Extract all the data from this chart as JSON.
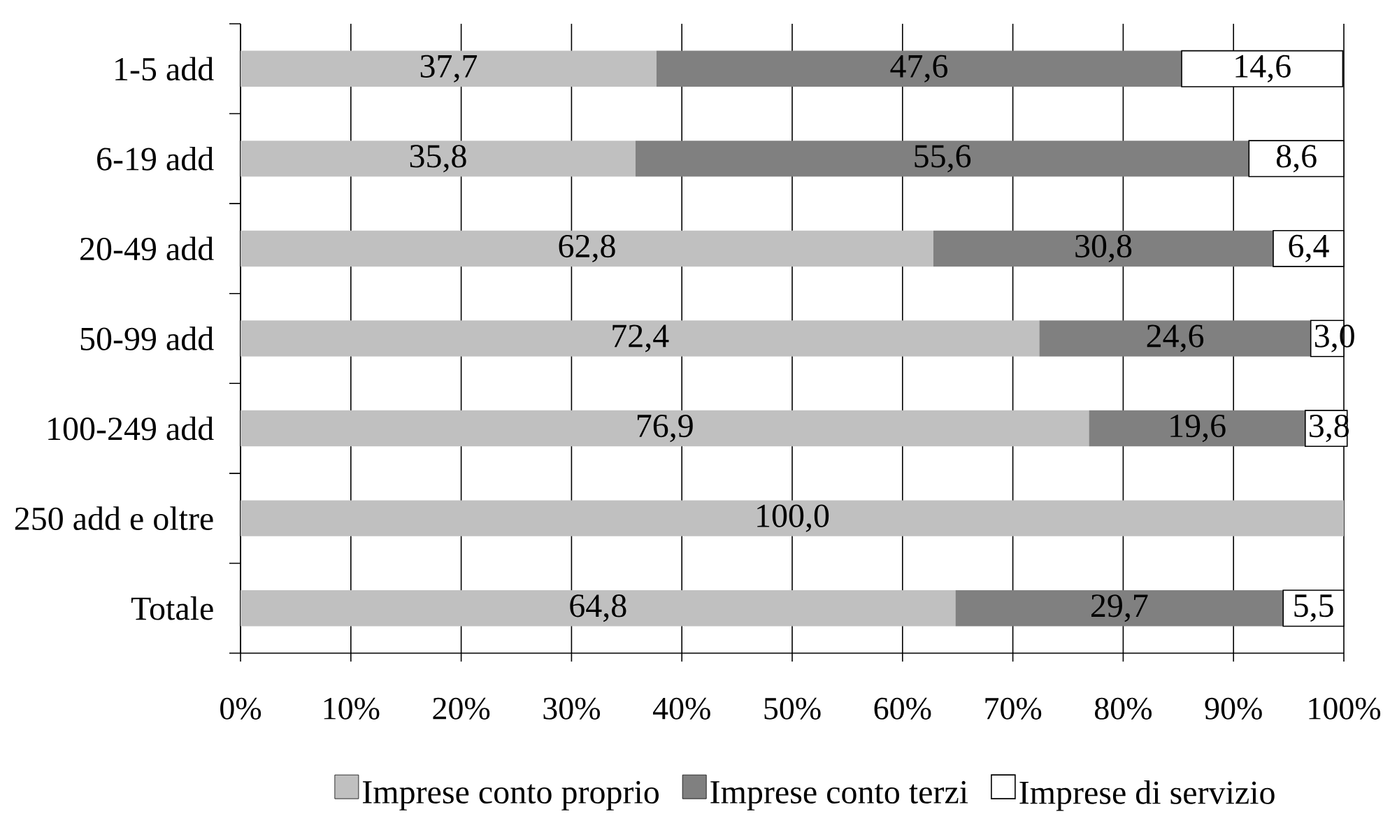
{
  "chart_data": {
    "type": "bar",
    "orientation": "horizontal",
    "stacked": true,
    "categories": [
      "1-5 add",
      "6-19 add",
      "20-49 add",
      "50-99 add",
      "100-249 add",
      "250 add e oltre",
      "Totale"
    ],
    "series": [
      {
        "name": "Imprese conto proprio",
        "color": "#c0c0c0",
        "values": [
          37.7,
          35.8,
          62.8,
          72.4,
          76.9,
          100.0,
          64.8
        ],
        "value_labels": [
          "37,7",
          "35,8",
          "62,8",
          "72,4",
          "76,9",
          "100,0",
          "64,8"
        ]
      },
      {
        "name": "Imprese conto terzi",
        "color": "#808080",
        "values": [
          47.6,
          55.6,
          30.8,
          24.6,
          19.6,
          null,
          29.7
        ],
        "value_labels": [
          "47,6",
          "55,6",
          "30,8",
          "24,6",
          "19,6",
          null,
          "29,7"
        ]
      },
      {
        "name": "Imprese di servizio",
        "color": "#ffffff",
        "values": [
          14.6,
          8.6,
          6.4,
          3.0,
          3.8,
          null,
          5.5
        ],
        "value_labels": [
          "14,6",
          "8,6",
          "6,4",
          "3,0",
          "3,8",
          null,
          "5,5"
        ]
      }
    ],
    "xlim": [
      0,
      100
    ],
    "xticks": [
      {
        "value": 0,
        "label": "0%"
      },
      {
        "value": 10,
        "label": "10%"
      },
      {
        "value": 20,
        "label": "20%"
      },
      {
        "value": 30,
        "label": "30%"
      },
      {
        "value": 40,
        "label": "40%"
      },
      {
        "value": 50,
        "label": "50%"
      },
      {
        "value": 60,
        "label": "60%"
      },
      {
        "value": 70,
        "label": "70%"
      },
      {
        "value": 80,
        "label": "80%"
      },
      {
        "value": 90,
        "label": "90%"
      },
      {
        "value": 100,
        "label": "100%"
      }
    ],
    "grid": "x",
    "legend": "bottom"
  }
}
